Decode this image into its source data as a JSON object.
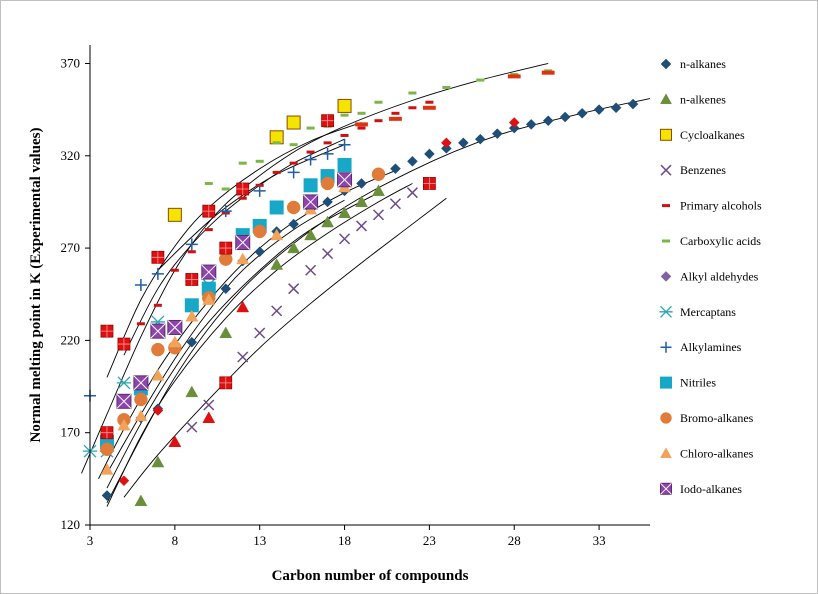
{
  "chart_data": {
    "type": "scatter",
    "xlabel": "Carbon number  of compounds",
    "ylabel": "Normal melting point in K (Experimental values)",
    "xlim": [
      3,
      36
    ],
    "ylim": [
      120,
      380
    ],
    "xticks": [
      3,
      8,
      13,
      18,
      23,
      28,
      33
    ],
    "yticks": [
      120,
      170,
      220,
      270,
      320,
      370
    ],
    "grid": false,
    "legend_position": "right",
    "series": [
      {
        "name": "n-alkanes",
        "marker": "diamond",
        "color": "#1f4e79",
        "points": [
          [
            4,
            136
          ],
          [
            6,
            178
          ],
          [
            7,
            183
          ],
          [
            8,
            216
          ],
          [
            9,
            219
          ],
          [
            10,
            243
          ],
          [
            11,
            248
          ],
          [
            12,
            263
          ],
          [
            13,
            268
          ],
          [
            14,
            279
          ],
          [
            15,
            283
          ],
          [
            16,
            291
          ],
          [
            17,
            295
          ],
          [
            18,
            301
          ],
          [
            19,
            305
          ],
          [
            20,
            310
          ],
          [
            21,
            313
          ],
          [
            22,
            317
          ],
          [
            23,
            321
          ],
          [
            24,
            324
          ],
          [
            25,
            327
          ],
          [
            26,
            329
          ],
          [
            27,
            332
          ],
          [
            28,
            335
          ],
          [
            29,
            337
          ],
          [
            30,
            339
          ],
          [
            31,
            341
          ],
          [
            32,
            343
          ],
          [
            33,
            345
          ],
          [
            34,
            346
          ],
          [
            35,
            348
          ]
        ]
      },
      {
        "name": "n-alkenes",
        "marker": "triangle",
        "color": "#6a8f3a",
        "points": [
          [
            6,
            133
          ],
          [
            7,
            154
          ],
          [
            9,
            192
          ],
          [
            11,
            224
          ],
          [
            14,
            261
          ],
          [
            15,
            270
          ],
          [
            16,
            277
          ],
          [
            17,
            284
          ],
          [
            18,
            289
          ],
          [
            19,
            295
          ],
          [
            20,
            301
          ]
        ]
      },
      {
        "name": "Cycloalkanes",
        "marker": "square",
        "color": "#f5e300",
        "stroke": "#8b4a00",
        "points": [
          [
            8,
            288
          ],
          [
            14,
            330
          ],
          [
            15,
            338
          ],
          [
            18,
            347
          ]
        ]
      },
      {
        "name": "Benzenes",
        "marker": "x",
        "color": "#6a4c8c",
        "points": [
          [
            9,
            173
          ],
          [
            10,
            185
          ],
          [
            12,
            211
          ],
          [
            13,
            224
          ],
          [
            14,
            236
          ],
          [
            15,
            248
          ],
          [
            16,
            258
          ],
          [
            17,
            267
          ],
          [
            18,
            275
          ],
          [
            19,
            282
          ],
          [
            20,
            288
          ],
          [
            21,
            294
          ],
          [
            22,
            300
          ]
        ]
      },
      {
        "name": "Primary alcohols",
        "marker": "dash",
        "color": "#cc1111",
        "points": [
          [
            6,
            229
          ],
          [
            7,
            239
          ],
          [
            8,
            258
          ],
          [
            9,
            268
          ],
          [
            10,
            280
          ],
          [
            11,
            289
          ],
          [
            12,
            297
          ],
          [
            13,
            304
          ],
          [
            14,
            311
          ],
          [
            15,
            316
          ],
          [
            16,
            322
          ],
          [
            17,
            327
          ],
          [
            18,
            331
          ],
          [
            19,
            335
          ],
          [
            20,
            339
          ],
          [
            21,
            343
          ],
          [
            22,
            346
          ],
          [
            23,
            349
          ]
        ]
      },
      {
        "name": "Carboxylic acids",
        "marker": "dash",
        "color": "#7ab648",
        "points": [
          [
            10,
            305
          ],
          [
            11,
            302
          ],
          [
            12,
            316
          ],
          [
            13,
            317
          ],
          [
            14,
            327
          ],
          [
            15,
            326
          ],
          [
            16,
            335
          ],
          [
            17,
            336
          ],
          [
            18,
            342
          ],
          [
            19,
            343
          ],
          [
            20,
            349
          ],
          [
            22,
            354
          ],
          [
            24,
            357
          ],
          [
            26,
            361
          ],
          [
            28,
            364
          ],
          [
            30,
            366
          ]
        ]
      },
      {
        "name": "Alkyl aldehydes",
        "marker": "diamond",
        "color": "#8064a2",
        "points": []
      },
      {
        "name": "Mercaptans",
        "marker": "asterisk",
        "color": "#2aa6b3",
        "points": [
          [
            3,
            160
          ],
          [
            4,
            160
          ],
          [
            5,
            197
          ],
          [
            7,
            230
          ],
          [
            10,
            250
          ]
        ]
      },
      {
        "name": "Alkylamines",
        "marker": "plus",
        "color": "#1f5fa8",
        "points": [
          [
            3,
            190
          ],
          [
            6,
            250
          ],
          [
            7,
            256
          ],
          [
            9,
            272
          ],
          [
            11,
            290
          ],
          [
            13,
            301
          ],
          [
            15,
            311
          ],
          [
            16,
            318
          ],
          [
            17,
            321
          ],
          [
            18,
            326
          ]
        ]
      },
      {
        "name": "Nitriles",
        "marker": "square",
        "color": "#17a7c7",
        "points": [
          [
            4,
            165
          ],
          [
            6,
            194
          ],
          [
            9,
            239
          ],
          [
            10,
            248
          ],
          [
            12,
            277
          ],
          [
            13,
            282
          ],
          [
            14,
            292
          ],
          [
            16,
            304
          ],
          [
            17,
            309
          ],
          [
            18,
            315
          ]
        ]
      },
      {
        "name": "Bromo-alkanes",
        "marker": "circle",
        "color": "#e07b39",
        "points": [
          [
            4,
            161
          ],
          [
            5,
            177
          ],
          [
            6,
            188
          ],
          [
            7,
            215
          ],
          [
            8,
            216
          ],
          [
            10,
            243
          ],
          [
            11,
            264
          ],
          [
            13,
            279
          ],
          [
            15,
            292
          ],
          [
            17,
            305
          ],
          [
            20,
            310
          ]
        ]
      },
      {
        "name": "Chloro-alkanes",
        "marker": "triangle",
        "color": "#f3a25a",
        "points": [
          [
            4,
            150
          ],
          [
            5,
            174
          ],
          [
            6,
            179
          ],
          [
            7,
            201
          ],
          [
            8,
            219
          ],
          [
            9,
            233
          ],
          [
            10,
            242
          ],
          [
            12,
            264
          ],
          [
            14,
            277
          ],
          [
            16,
            291
          ],
          [
            18,
            303
          ]
        ]
      },
      {
        "name": "Iodo-alkanes",
        "marker": "square-x",
        "color": "#8e44ad",
        "points": [
          [
            5,
            187
          ],
          [
            6,
            197
          ],
          [
            7,
            225
          ],
          [
            8,
            227
          ],
          [
            10,
            257
          ],
          [
            12,
            273
          ],
          [
            16,
            295
          ],
          [
            18,
            307
          ]
        ]
      },
      {
        "name": "",
        "marker": "square-cross",
        "color": "#dd1111",
        "points": [
          [
            4,
            170
          ],
          [
            4,
            225
          ],
          [
            5,
            218
          ],
          [
            7,
            265
          ],
          [
            9,
            253
          ],
          [
            10,
            290
          ],
          [
            11,
            270
          ],
          [
            11,
            197
          ],
          [
            12,
            302
          ],
          [
            17,
            339
          ],
          [
            23,
            305
          ]
        ]
      },
      {
        "name": "",
        "marker": "diamond",
        "color": "#dd1111",
        "points": [
          [
            5,
            144
          ],
          [
            7,
            182
          ],
          [
            24,
            327
          ],
          [
            28,
            338
          ]
        ]
      },
      {
        "name": "",
        "marker": "triangle",
        "color": "#dd1111",
        "points": [
          [
            8,
            165
          ],
          [
            10,
            178
          ],
          [
            12,
            238
          ]
        ]
      },
      {
        "name": "",
        "marker": "wide-dash",
        "color": "#dd3311",
        "points": [
          [
            19,
            337
          ],
          [
            21,
            340
          ],
          [
            23,
            346
          ],
          [
            28,
            363
          ],
          [
            30,
            365
          ]
        ]
      }
    ],
    "trendlines": [
      {
        "color": "#000000",
        "points": [
          [
            2.5,
            148
          ],
          [
            4,
            180
          ],
          [
            6,
            222
          ],
          [
            8,
            258
          ],
          [
            10,
            284
          ],
          [
            12,
            302
          ],
          [
            15,
            322
          ],
          [
            18,
            336
          ],
          [
            22,
            350
          ],
          [
            26,
            361
          ],
          [
            30,
            370
          ]
        ]
      },
      {
        "color": "#000000",
        "points": [
          [
            4,
            200
          ],
          [
            6,
            242
          ],
          [
            8,
            271
          ],
          [
            10,
            292
          ],
          [
            13,
            313
          ],
          [
            16,
            328
          ],
          [
            19,
            338
          ]
        ]
      },
      {
        "color": "#000000",
        "points": [
          [
            5,
            212
          ],
          [
            7,
            248
          ],
          [
            9,
            272
          ],
          [
            11,
            290
          ],
          [
            13,
            304
          ],
          [
            15,
            316
          ],
          [
            18,
            329
          ]
        ]
      },
      {
        "color": "#000000",
        "points": [
          [
            7,
            258
          ],
          [
            9,
            276
          ],
          [
            11,
            292
          ],
          [
            14,
            310
          ],
          [
            18,
            326
          ]
        ]
      },
      {
        "color": "#000000",
        "points": [
          [
            3.5,
            145
          ],
          [
            5,
            172
          ],
          [
            7,
            204
          ],
          [
            9,
            230
          ],
          [
            11,
            252
          ],
          [
            13,
            270
          ],
          [
            15,
            284
          ],
          [
            18,
            300
          ],
          [
            21,
            312
          ]
        ]
      },
      {
        "color": "#000000",
        "points": [
          [
            4,
            148
          ],
          [
            6,
            180
          ],
          [
            8,
            210
          ],
          [
            10,
            236
          ],
          [
            12,
            258
          ],
          [
            15,
            280
          ],
          [
            18,
            296
          ]
        ]
      },
      {
        "color": "#000000",
        "points": [
          [
            4,
            140
          ],
          [
            6,
            175
          ],
          [
            8,
            205
          ],
          [
            10,
            230
          ],
          [
            13,
            258
          ],
          [
            16,
            280
          ],
          [
            20,
            300
          ]
        ]
      },
      {
        "color": "#000000",
        "points": [
          [
            4,
            130
          ],
          [
            6,
            168
          ],
          [
            8,
            198
          ],
          [
            11,
            232
          ],
          [
            14,
            258
          ],
          [
            17,
            278
          ],
          [
            20,
            295
          ],
          [
            22,
            305
          ]
        ]
      },
      {
        "color": "#000000",
        "points": [
          [
            5,
            135
          ],
          [
            7,
            158
          ],
          [
            10,
            188
          ],
          [
            13,
            216
          ],
          [
            16,
            240
          ],
          [
            19,
            262
          ],
          [
            22,
            283
          ],
          [
            24,
            297
          ]
        ]
      },
      {
        "color": "#000000",
        "points": [
          [
            4,
            132
          ],
          [
            8,
            200
          ],
          [
            12,
            248
          ],
          [
            17,
            286
          ],
          [
            22,
            312
          ],
          [
            27,
            331
          ],
          [
            32,
            343
          ],
          [
            36,
            351
          ]
        ]
      }
    ]
  }
}
